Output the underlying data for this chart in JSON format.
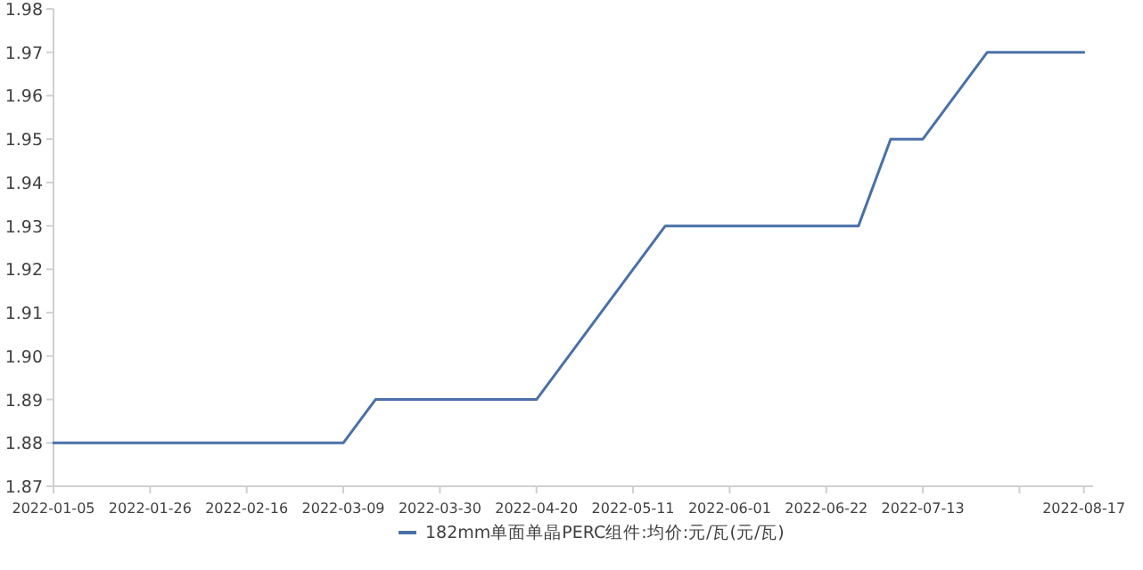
{
  "chart_data": {
    "type": "line",
    "legend": "bottom",
    "marker": "none",
    "line_style": "solid",
    "grid": false,
    "x": [
      "2022-01-05",
      "2022-01-12",
      "2022-01-19",
      "2022-01-26",
      "2022-02-02",
      "2022-02-09",
      "2022-02-16",
      "2022-02-23",
      "2022-03-02",
      "2022-03-09",
      "2022-03-16",
      "2022-03-23",
      "2022-03-30",
      "2022-04-06",
      "2022-04-13",
      "2022-04-20",
      "2022-04-27",
      "2022-05-04",
      "2022-05-11",
      "2022-05-18",
      "2022-05-25",
      "2022-06-01",
      "2022-06-08",
      "2022-06-15",
      "2022-06-22",
      "2022-06-29",
      "2022-07-06",
      "2022-07-13",
      "2022-07-20",
      "2022-07-27",
      "2022-08-03",
      "2022-08-10",
      "2022-08-17"
    ],
    "series": [
      {
        "name": "182mm单面单晶PERC组件:均价:元/瓦(元/瓦)",
        "color": "#4a70a8",
        "values": [
          1.88,
          1.88,
          1.88,
          1.88,
          1.88,
          1.88,
          1.88,
          1.88,
          1.88,
          1.88,
          1.89,
          1.89,
          1.89,
          1.89,
          1.89,
          1.89,
          1.9,
          1.91,
          1.92,
          1.93,
          1.93,
          1.93,
          1.93,
          1.93,
          1.93,
          1.93,
          1.95,
          1.95,
          1.96,
          1.97,
          1.97,
          1.97,
          1.97
        ]
      }
    ],
    "xlim": [
      "2022-01-05",
      "2022-08-19"
    ],
    "xticks": [
      "2022-01-05",
      "2022-01-26",
      "2022-02-16",
      "2022-03-09",
      "2022-03-30",
      "2022-04-20",
      "2022-05-11",
      "2022-06-01",
      "2022-06-22",
      "2022-07-13",
      {
        "value": "2022-08-03",
        "label": null
      },
      "2022-08-17"
    ],
    "ylim": [
      1.87,
      1.98
    ],
    "yticks": [
      1.87,
      1.88,
      1.89,
      {
        "value": 1.9,
        "label": "1.90"
      },
      1.91,
      1.92,
      1.93,
      1.94,
      1.95,
      1.96,
      1.97,
      1.98
    ]
  }
}
